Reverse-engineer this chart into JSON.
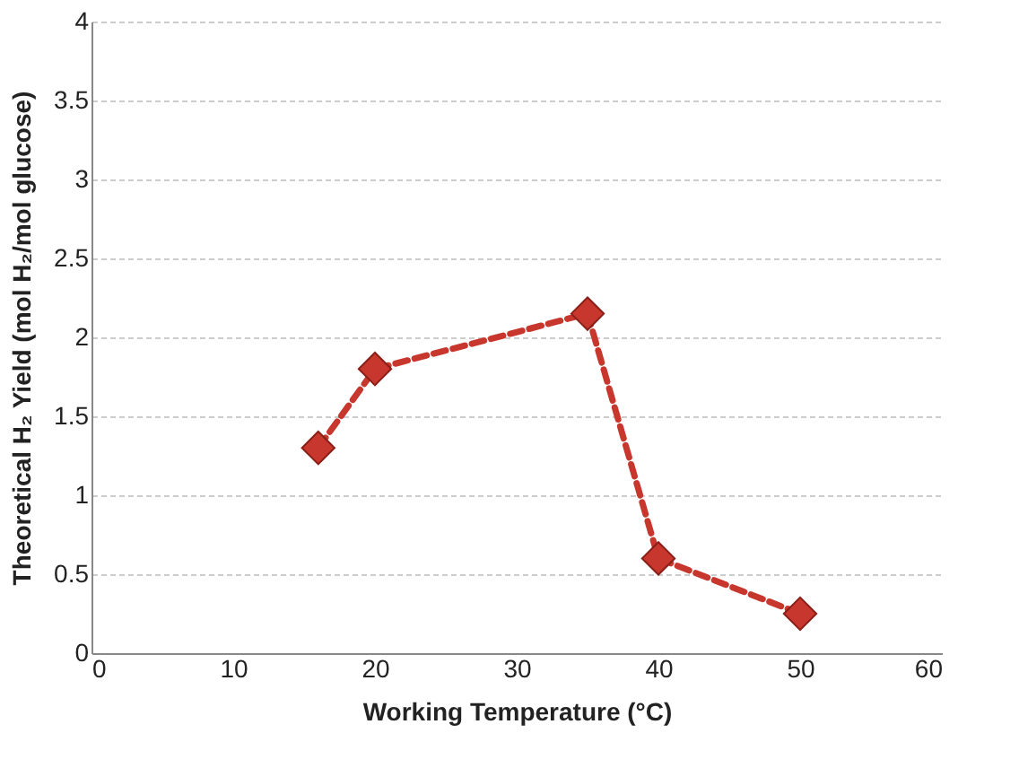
{
  "chart_data": {
    "type": "line",
    "xlabel": "Working Temperature (°C)",
    "ylabel": "Theoretical H₂ Yield (mol H₂/mol glucose)",
    "x": [
      16,
      20,
      35,
      40,
      50
    ],
    "series": [
      {
        "color": "#c8372d",
        "values": [
          1.3,
          1.8,
          2.15,
          0.6,
          0.25
        ]
      }
    ],
    "xlim": [
      0,
      60
    ],
    "xticks": [
      0,
      10,
      20,
      30,
      40,
      50,
      60
    ],
    "ylim": [
      0,
      4
    ],
    "yticks": [
      0,
      0.5,
      1,
      1.5,
      2,
      2.5,
      3,
      3.5,
      4
    ],
    "grid": "y",
    "marker": "diamond",
    "line_style": "dashed"
  }
}
